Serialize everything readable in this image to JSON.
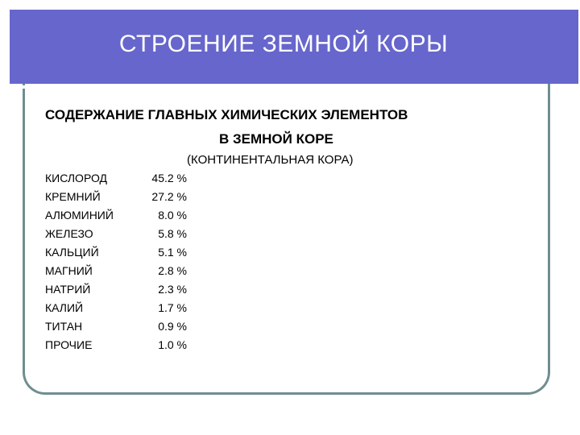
{
  "slide": {
    "title": "СТРОЕНИЕ ЗЕМНОЙ КОРЫ",
    "heading_line1": "СОДЕРЖАНИЕ ГЛАВНЫХ ХИМИЧЕСКИХ ЭЛЕМЕНТОВ",
    "heading_line2": "В ЗЕМНОЙ КОРЕ",
    "subheading": "(КОНТИНЕНТАЛЬНАЯ КОРА)",
    "colors": {
      "title_bar": "#6666cc",
      "frame": "#6f8e90",
      "title_text": "#ffffff"
    }
  },
  "elements": [
    {
      "name": "КИСЛОРОД",
      "value": "45.2 %"
    },
    {
      "name": "КРЕМНИЙ",
      "value": "27.2 %"
    },
    {
      "name": "АЛЮМИНИЙ",
      "value": "8.0 %"
    },
    {
      "name": "ЖЕЛЕЗО",
      "value": "5.8 %"
    },
    {
      "name": "КАЛЬЦИЙ",
      "value": "5.1 %"
    },
    {
      "name": "МАГНИЙ",
      "value": "2.8 %"
    },
    {
      "name": "НАТРИЙ",
      "value": "2.3 %"
    },
    {
      "name": "КАЛИЙ",
      "value": "1.7 %"
    },
    {
      "name": "ТИТАН",
      "value": "0.9 %"
    },
    {
      "name": "ПРОЧИЕ",
      "value": "1.0 %"
    }
  ]
}
